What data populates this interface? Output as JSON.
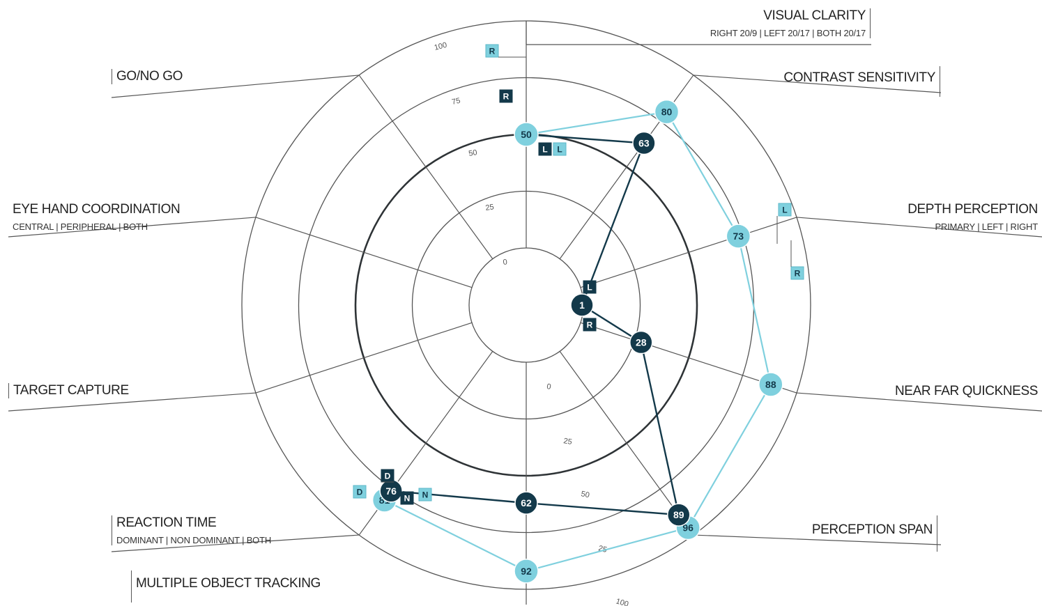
{
  "chart_data": {
    "type": "radar",
    "axes": [
      {
        "id": "visual-clarity",
        "label": "VISUAL CLARITY",
        "sub": "RIGHT 20/9 | LEFT 20/17 | BOTH 20/17"
      },
      {
        "id": "contrast-sensitivity",
        "label": "CONTRAST SENSITIVITY",
        "sub": ""
      },
      {
        "id": "depth-perception",
        "label": "DEPTH PERCEPTION",
        "sub": "PRIMARY | LEFT | RIGHT"
      },
      {
        "id": "near-far-quickness",
        "label": "NEAR FAR QUICKNESS",
        "sub": ""
      },
      {
        "id": "perception-span",
        "label": "PERCEPTION SPAN",
        "sub": ""
      },
      {
        "id": "multiple-object-tracking",
        "label": "MULTIPLE OBJECT TRACKING",
        "sub": ""
      },
      {
        "id": "reaction-time",
        "label": "REACTION TIME",
        "sub": "DOMINANT | NON DOMINANT | BOTH"
      },
      {
        "id": "target-capture",
        "label": "TARGET CAPTURE",
        "sub": ""
      },
      {
        "id": "eye-hand-coordination",
        "label": "EYE HAND COORDINATION",
        "sub": "CENTRAL | PERIPHERAL | BOTH"
      },
      {
        "id": "go-no-go",
        "label": "GO/NO GO",
        "sub": ""
      }
    ],
    "rlim": [
      0,
      100
    ],
    "upper_ticks": [
      "0",
      "25",
      "50",
      "75",
      "100"
    ],
    "lower_ticks": [
      "0",
      "25",
      "50",
      "25",
      "100"
    ],
    "series": [
      {
        "color": "#7fd0de",
        "points": [
          {
            "axis": "visual-clarity",
            "value": 50
          },
          {
            "axis": "contrast-sensitivity",
            "value": 80
          },
          {
            "axis": "depth-perception",
            "value": 73
          },
          {
            "axis": "near-far-quickness",
            "value": 88
          },
          {
            "axis": "perception-span",
            "value": 96
          },
          {
            "axis": "multiple-object-tracking",
            "value": 92
          },
          {
            "axis": "reaction-time",
            "value": 81
          }
        ]
      },
      {
        "color": "#13394a",
        "points": [
          {
            "axis": "visual-clarity",
            "value": 50,
            "label": ""
          },
          {
            "axis": "contrast-sensitivity",
            "value": 63
          },
          {
            "axis": "depth-perception",
            "value": 1,
            "at_center": true
          },
          {
            "axis": "near-far-quickness",
            "value": 28
          },
          {
            "axis": "perception-span",
            "value": 89,
            "label": "89"
          },
          {
            "axis": "multiple-object-tracking",
            "value": 62
          },
          {
            "axis": "reaction-time",
            "value": 76,
            "label": "76"
          }
        ]
      }
    ],
    "markers": [
      {
        "text": "R",
        "color": "#7fd0de",
        "axis": "visual-clarity",
        "value": 100
      },
      {
        "text": "R",
        "color": "#13394a",
        "axis": "visual-clarity",
        "value": 75
      },
      {
        "text": "L",
        "color": "#13394a",
        "axis": "visual-clarity",
        "value": 50
      },
      {
        "text": "L",
        "color": "#7fd0de",
        "axis": "visual-clarity",
        "value": 50
      },
      {
        "text": "L",
        "color": "#7fd0de",
        "axis": "depth-perception",
        "value": 100
      },
      {
        "text": "R",
        "color": "#7fd0de",
        "axis": "depth-perception",
        "value": 100
      },
      {
        "text": "L",
        "color": "#13394a",
        "axis": "center",
        "value": 0
      },
      {
        "text": "R",
        "color": "#13394a",
        "axis": "center",
        "value": 0
      },
      {
        "text": "D",
        "color": "#13394a",
        "axis": "reaction-time",
        "value": 76
      },
      {
        "text": "N",
        "color": "#13394a",
        "axis": "reaction-time",
        "value": 76
      },
      {
        "text": "D",
        "color": "#7fd0de",
        "axis": "reaction-time",
        "value": 81
      },
      {
        "text": "N",
        "color": "#7fd0de",
        "axis": "reaction-time",
        "value": 81
      }
    ],
    "colors": {
      "light": "#7fd0de",
      "dark": "#13394a",
      "grid": "#3a3a3a"
    }
  }
}
